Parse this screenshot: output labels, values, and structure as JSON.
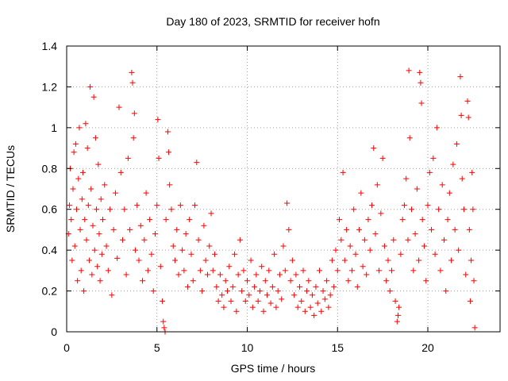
{
  "chart_data": {
    "type": "scatter",
    "title": "Day 180 of 2023, SRMTID for receiver hofn",
    "xlabel": "GPS time / hours",
    "ylabel": "SRMTID / TECUs",
    "xlim": [
      0,
      24
    ],
    "ylim": [
      0,
      1.4
    ],
    "xticks": [
      0,
      5,
      10,
      15,
      20
    ],
    "yticks": [
      0,
      0.2,
      0.4,
      0.6,
      0.8,
      1.0,
      1.2,
      1.4
    ],
    "xtick_labels": [
      "0",
      "5",
      "10",
      "15",
      "20"
    ],
    "ytick_labels": [
      "0",
      "0.2",
      "0.4",
      "0.6",
      "0.8",
      "1",
      "1.2",
      "1.4"
    ],
    "grid": true,
    "marker": "+",
    "series": [
      {
        "name": "SRMTID",
        "color": "#ff0000",
        "points": [
          [
            0.1,
            0.48
          ],
          [
            0.15,
            0.62
          ],
          [
            0.2,
            0.8
          ],
          [
            0.25,
            0.55
          ],
          [
            0.3,
            0.35
          ],
          [
            0.35,
            0.7
          ],
          [
            0.4,
            0.88
          ],
          [
            0.45,
            0.42
          ],
          [
            0.5,
            0.92
          ],
          [
            0.55,
            0.6
          ],
          [
            0.6,
            0.25
          ],
          [
            0.65,
            0.75
          ],
          [
            0.7,
            1.0
          ],
          [
            0.75,
            0.5
          ],
          [
            0.8,
            0.3
          ],
          [
            0.85,
            0.65
          ],
          [
            0.9,
            0.78
          ],
          [
            0.95,
            0.2
          ],
          [
            1.0,
            0.55
          ],
          [
            1.05,
            1.02
          ],
          [
            1.1,
            0.45
          ],
          [
            1.15,
            0.9
          ],
          [
            1.2,
            0.62
          ],
          [
            1.25,
            0.35
          ],
          [
            1.3,
            1.2
          ],
          [
            1.35,
            0.7
          ],
          [
            1.4,
            0.28
          ],
          [
            1.45,
            0.52
          ],
          [
            1.5,
            1.15
          ],
          [
            1.55,
            0.4
          ],
          [
            1.6,
            0.95
          ],
          [
            1.65,
            0.6
          ],
          [
            1.7,
            0.32
          ],
          [
            1.75,
            0.82
          ],
          [
            1.8,
            0.48
          ],
          [
            1.85,
            0.25
          ],
          [
            1.9,
            0.65
          ],
          [
            1.95,
            0.38
          ],
          [
            2.0,
            0.55
          ],
          [
            2.1,
            0.72
          ],
          [
            2.2,
            0.42
          ],
          [
            2.3,
            0.3
          ],
          [
            2.4,
            0.6
          ],
          [
            2.5,
            0.18
          ],
          [
            2.6,
            0.5
          ],
          [
            2.7,
            0.68
          ],
          [
            2.8,
            0.36
          ],
          [
            2.9,
            1.1
          ],
          [
            3.0,
            0.78
          ],
          [
            3.1,
            0.45
          ],
          [
            3.2,
            0.6
          ],
          [
            3.3,
            0.28
          ],
          [
            3.4,
            0.85
          ],
          [
            3.5,
            0.5
          ],
          [
            3.6,
            1.27
          ],
          [
            3.65,
            1.22
          ],
          [
            3.7,
            0.95
          ],
          [
            3.75,
            1.07
          ],
          [
            3.8,
            0.4
          ],
          [
            3.9,
            0.62
          ],
          [
            4.0,
            0.35
          ],
          [
            4.1,
            0.52
          ],
          [
            4.2,
            0.25
          ],
          [
            4.3,
            0.45
          ],
          [
            4.4,
            0.68
          ],
          [
            4.5,
            0.3
          ],
          [
            4.6,
            0.55
          ],
          [
            4.7,
            0.38
          ],
          [
            4.8,
            0.2
          ],
          [
            4.9,
            0.48
          ],
          [
            5.0,
            0.62
          ],
          [
            5.05,
            1.04
          ],
          [
            5.1,
            0.85
          ],
          [
            5.2,
            0.32
          ],
          [
            5.3,
            0.15
          ],
          [
            5.35,
            0.05
          ],
          [
            5.4,
            0.02
          ],
          [
            5.45,
            0.0
          ],
          [
            5.5,
            0.55
          ],
          [
            5.6,
            0.98
          ],
          [
            5.65,
            0.88
          ],
          [
            5.7,
            0.72
          ],
          [
            5.8,
            0.6
          ],
          [
            5.9,
            0.42
          ],
          [
            6.0,
            0.35
          ],
          [
            6.1,
            0.5
          ],
          [
            6.2,
            0.28
          ],
          [
            6.3,
            0.62
          ],
          [
            6.4,
            0.4
          ],
          [
            6.5,
            0.3
          ],
          [
            6.6,
            0.48
          ],
          [
            6.7,
            0.22
          ],
          [
            6.8,
            0.55
          ],
          [
            6.9,
            0.38
          ],
          [
            7.0,
            0.25
          ],
          [
            7.1,
            0.62
          ],
          [
            7.2,
            0.83
          ],
          [
            7.3,
            0.45
          ],
          [
            7.4,
            0.3
          ],
          [
            7.5,
            0.2
          ],
          [
            7.6,
            0.52
          ],
          [
            7.7,
            0.35
          ],
          [
            7.8,
            0.28
          ],
          [
            7.9,
            0.42
          ],
          [
            8.0,
            0.58
          ],
          [
            8.1,
            0.3
          ],
          [
            8.2,
            0.38
          ],
          [
            8.3,
            0.22
          ],
          [
            8.4,
            0.15
          ],
          [
            8.5,
            0.28
          ],
          [
            8.6,
            0.18
          ],
          [
            8.7,
            0.12
          ],
          [
            8.8,
            0.25
          ],
          [
            8.9,
            0.2
          ],
          [
            9.0,
            0.32
          ],
          [
            9.1,
            0.15
          ],
          [
            9.2,
            0.22
          ],
          [
            9.3,
            0.38
          ],
          [
            9.4,
            0.1
          ],
          [
            9.5,
            0.28
          ],
          [
            9.6,
            0.45
          ],
          [
            9.7,
            0.2
          ],
          [
            9.8,
            0.3
          ],
          [
            9.9,
            0.15
          ],
          [
            10.0,
            0.25
          ],
          [
            10.1,
            0.18
          ],
          [
            10.2,
            0.35
          ],
          [
            10.3,
            0.12
          ],
          [
            10.4,
            0.22
          ],
          [
            10.5,
            0.28
          ],
          [
            10.6,
            0.15
          ],
          [
            10.7,
            0.2
          ],
          [
            10.8,
            0.32
          ],
          [
            10.9,
            0.1
          ],
          [
            11.0,
            0.25
          ],
          [
            11.1,
            0.18
          ],
          [
            11.2,
            0.3
          ],
          [
            11.3,
            0.14
          ],
          [
            11.4,
            0.22
          ],
          [
            11.5,
            0.38
          ],
          [
            11.6,
            0.12
          ],
          [
            11.7,
            0.2
          ],
          [
            11.8,
            0.28
          ],
          [
            11.9,
            0.16
          ],
          [
            12.0,
            0.42
          ],
          [
            12.1,
            0.3
          ],
          [
            12.2,
            0.63
          ],
          [
            12.3,
            0.5
          ],
          [
            12.4,
            0.25
          ],
          [
            12.5,
            0.35
          ],
          [
            12.6,
            0.18
          ],
          [
            12.7,
            0.28
          ],
          [
            12.8,
            0.12
          ],
          [
            12.9,
            0.22
          ],
          [
            13.0,
            0.15
          ],
          [
            13.1,
            0.3
          ],
          [
            13.2,
            0.1
          ],
          [
            13.3,
            0.2
          ],
          [
            13.4,
            0.25
          ],
          [
            13.5,
            0.12
          ],
          [
            13.6,
            0.18
          ],
          [
            13.7,
            0.08
          ],
          [
            13.8,
            0.22
          ],
          [
            13.9,
            0.14
          ],
          [
            14.0,
            0.3
          ],
          [
            14.1,
            0.1
          ],
          [
            14.2,
            0.2
          ],
          [
            14.3,
            0.16
          ],
          [
            14.4,
            0.25
          ],
          [
            14.5,
            0.12
          ],
          [
            14.6,
            0.18
          ],
          [
            14.7,
            0.35
          ],
          [
            14.8,
            0.22
          ],
          [
            14.9,
            0.4
          ],
          [
            15.0,
            0.3
          ],
          [
            15.1,
            0.55
          ],
          [
            15.2,
            0.45
          ],
          [
            15.3,
            0.78
          ],
          [
            15.4,
            0.35
          ],
          [
            15.5,
            0.5
          ],
          [
            15.6,
            0.25
          ],
          [
            15.7,
            0.42
          ],
          [
            15.8,
            0.3
          ],
          [
            15.9,
            0.6
          ],
          [
            16.0,
            0.38
          ],
          [
            16.1,
            0.22
          ],
          [
            16.2,
            0.5
          ],
          [
            16.3,
            0.68
          ],
          [
            16.4,
            0.32
          ],
          [
            16.5,
            0.45
          ],
          [
            16.6,
            0.28
          ],
          [
            16.7,
            0.55
          ],
          [
            16.8,
            0.4
          ],
          [
            16.9,
            0.62
          ],
          [
            17.0,
            0.9
          ],
          [
            17.1,
            0.48
          ],
          [
            17.2,
            0.72
          ],
          [
            17.3,
            0.3
          ],
          [
            17.4,
            0.58
          ],
          [
            17.5,
            0.85
          ],
          [
            17.6,
            0.42
          ],
          [
            17.7,
            0.25
          ],
          [
            17.8,
            0.35
          ],
          [
            17.9,
            0.2
          ],
          [
            18.0,
            0.3
          ],
          [
            18.1,
            0.45
          ],
          [
            18.2,
            0.15
          ],
          [
            18.3,
            0.05
          ],
          [
            18.35,
            0.08
          ],
          [
            18.4,
            0.12
          ],
          [
            18.5,
            0.38
          ],
          [
            18.6,
            0.55
          ],
          [
            18.7,
            0.62
          ],
          [
            18.8,
            0.75
          ],
          [
            18.9,
            0.45
          ],
          [
            18.95,
            1.28
          ],
          [
            19.0,
            0.95
          ],
          [
            19.1,
            0.6
          ],
          [
            19.2,
            0.3
          ],
          [
            19.3,
            0.48
          ],
          [
            19.4,
            0.7
          ],
          [
            19.5,
            0.35
          ],
          [
            19.55,
            1.27
          ],
          [
            19.6,
            1.22
          ],
          [
            19.65,
            1.12
          ],
          [
            19.7,
            0.55
          ],
          [
            19.8,
            0.42
          ],
          [
            19.9,
            0.25
          ],
          [
            20.0,
            0.62
          ],
          [
            20.1,
            0.78
          ],
          [
            20.2,
            0.5
          ],
          [
            20.3,
            0.85
          ],
          [
            20.4,
            0.38
          ],
          [
            20.5,
            1.0
          ],
          [
            20.6,
            0.6
          ],
          [
            20.7,
            0.3
          ],
          [
            20.8,
            0.72
          ],
          [
            20.9,
            0.45
          ],
          [
            21.0,
            0.2
          ],
          [
            21.1,
            0.55
          ],
          [
            21.2,
            0.68
          ],
          [
            21.3,
            0.35
          ],
          [
            21.4,
            0.82
          ],
          [
            21.5,
            0.5
          ],
          [
            21.6,
            0.92
          ],
          [
            21.7,
            0.4
          ],
          [
            21.8,
            1.25
          ],
          [
            21.85,
            1.06
          ],
          [
            21.9,
            0.75
          ],
          [
            22.0,
            0.6
          ],
          [
            22.1,
            0.28
          ],
          [
            22.2,
            1.13
          ],
          [
            22.25,
            1.05
          ],
          [
            22.3,
            0.5
          ],
          [
            22.35,
            0.15
          ],
          [
            22.4,
            0.35
          ],
          [
            22.45,
            0.78
          ],
          [
            22.5,
            0.6
          ],
          [
            22.55,
            0.25
          ],
          [
            22.6,
            0.02
          ]
        ]
      }
    ]
  }
}
